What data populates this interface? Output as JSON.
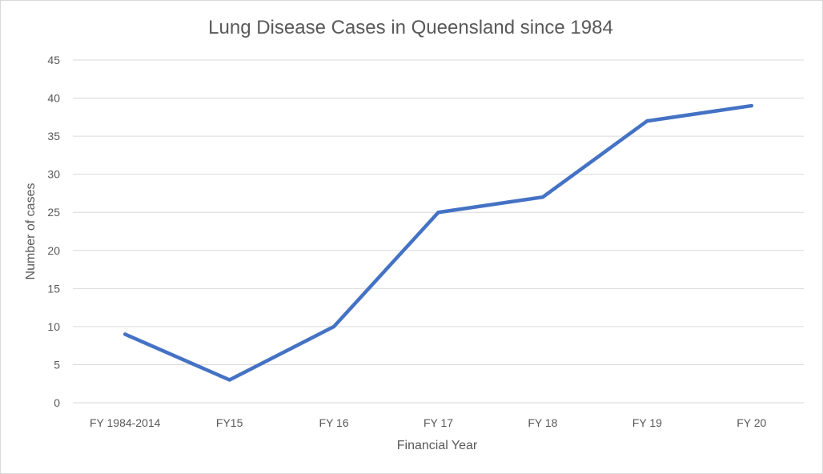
{
  "chart_data": {
    "type": "line",
    "title": "Lung Disease Cases in Queensland since 1984",
    "xlabel": "Financial Year",
    "ylabel": "Number of cases",
    "categories": [
      "FY 1984-2014",
      "FY15",
      "FY 16",
      "FY 17",
      "FY 18",
      "FY 19",
      "FY 20"
    ],
    "series": [
      {
        "values": [
          9,
          3,
          10,
          25,
          27,
          37,
          39
        ],
        "color": "#4472c4"
      }
    ],
    "ylim": [
      0,
      45
    ],
    "yticks": [
      0,
      5,
      10,
      15,
      20,
      25,
      30,
      35,
      40,
      45
    ],
    "grid": true,
    "legend": "none"
  }
}
